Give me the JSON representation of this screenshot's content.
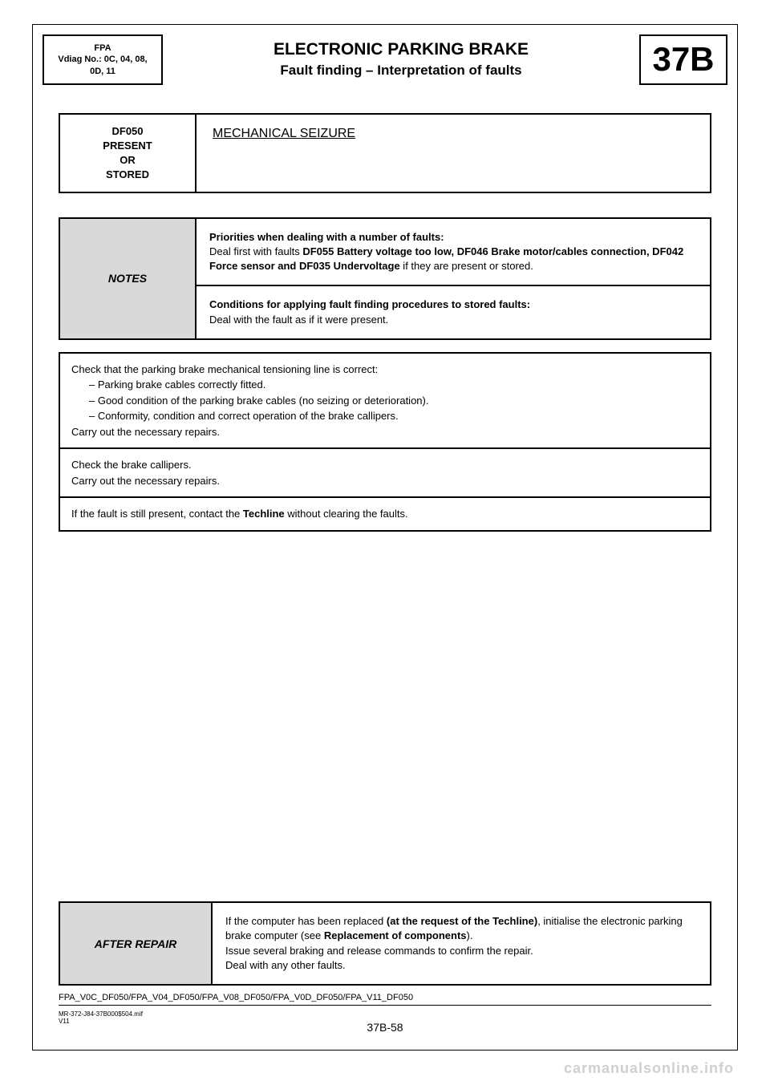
{
  "header": {
    "left_line1": "FPA",
    "left_line2": "Vdiag No.: 0C, 04, 08,",
    "left_line3": "0D, 11",
    "title": "ELECTRONIC PARKING BRAKE",
    "subtitle": "Fault finding – Interpretation of faults",
    "code": "37B"
  },
  "fault_header": {
    "code": "DF050",
    "status1": "PRESENT",
    "status2": "OR",
    "status3": "STORED",
    "title": "MECHANICAL SEIZURE"
  },
  "notes": {
    "label": "NOTES",
    "priorities_heading": "Priorities when dealing with a number of faults:",
    "priorities_body_pre": "Deal first with faults ",
    "priorities_bold": "DF055 Battery voltage too low, DF046 Brake motor/cables connection, DF042 Force sensor and DF035 Undervoltage",
    "priorities_body_post": " if they are present or stored.",
    "conditions_heading": "Conditions for applying fault finding procedures to stored faults:",
    "conditions_body": "Deal with the fault as if it were present."
  },
  "checks": {
    "row1_line1": "Check that the parking brake mechanical tensioning line is correct:",
    "row1_bullet1": "–  Parking brake cables correctly fitted.",
    "row1_bullet2": "–  Good condition of the parking brake cables (no seizing or deterioration).",
    "row1_bullet3": "–  Conformity, condition and correct operation of the brake callipers.",
    "row1_line2": "Carry out the necessary repairs.",
    "row2_line1": "Check the brake callipers.",
    "row2_line2": "Carry out the necessary repairs.",
    "row3_pre": "If the fault is still present, contact the ",
    "row3_bold": "Techline",
    "row3_post": " without clearing the faults."
  },
  "after_repair": {
    "label": "AFTER REPAIR",
    "line1_pre": "If the computer has been replaced ",
    "line1_bold1": "(at the request of the Techline)",
    "line1_mid": ", initialise the electronic parking brake computer (see ",
    "line1_bold2": "Replacement of components",
    "line1_post": ").",
    "line2": "Issue several braking and release commands to confirm the repair.",
    "line3": "Deal with any other faults."
  },
  "footer": {
    "ref": "FPA_V0C_DF050/FPA_V04_DF050/FPA_V08_DF050/FPA_V0D_DF050/FPA_V11_DF050",
    "small1": "MR-372-J84-37B000$504.mif",
    "small2": "V11",
    "pagenum": "37B-58",
    "watermark": "carmanualsonline.info"
  }
}
